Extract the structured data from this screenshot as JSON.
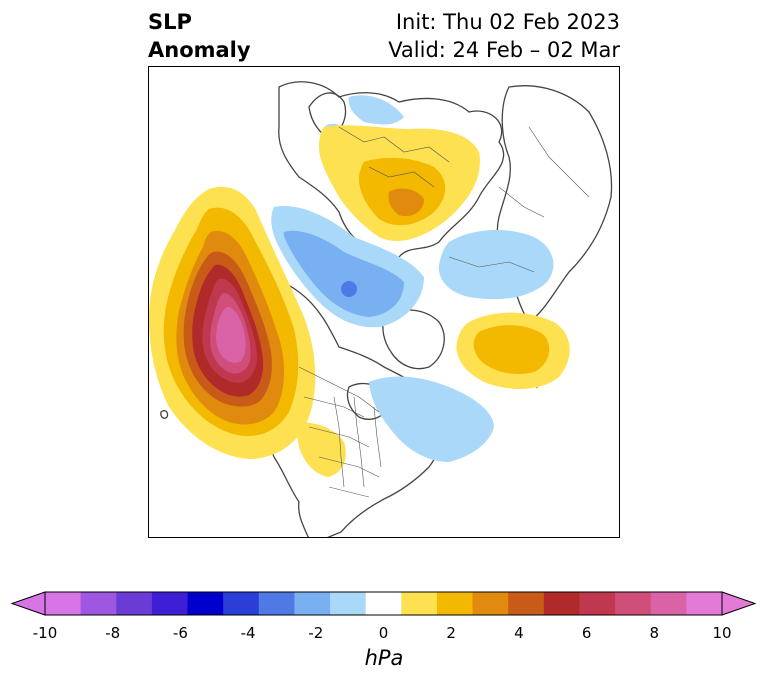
{
  "title": {
    "variable_line1": "SLP",
    "variable_line2": "Anomaly",
    "init": "Init: Thu 02 Feb 2023",
    "valid": "Valid: 24 Feb – 02 Mar"
  },
  "colorbar": {
    "unit_label": "hPa",
    "range": [
      -10,
      10
    ],
    "ticks": [
      "-10",
      "-8",
      "-6",
      "-4",
      "-2",
      "0",
      "2",
      "4",
      "6",
      "8",
      "10"
    ],
    "colors": [
      "#d774e6",
      "#9e57e0",
      "#6b3bd6",
      "#3f1fd6",
      "#0000cc",
      "#2a3fd8",
      "#4f7ae6",
      "#78b0f2",
      "#a9d8f8",
      "#ffffff",
      "#fde150",
      "#f3b800",
      "#e08a0e",
      "#c85b18",
      "#b02a2a",
      "#c0384e",
      "#cf4f7a",
      "#da63a8",
      "#e47ad8"
    ],
    "extend": "both"
  },
  "map": {
    "projection": "north-polar-stereographic",
    "features": [
      "coastlines",
      "country-borders",
      "us-state-borders"
    ]
  }
}
